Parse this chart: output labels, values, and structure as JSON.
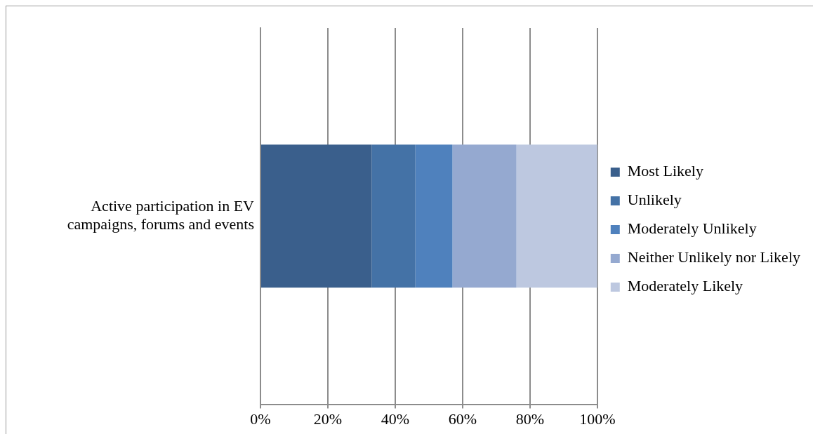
{
  "chart_data": {
    "type": "bar",
    "orientation": "horizontal",
    "stacked": true,
    "categories": [
      "Active participation in EV campaigns, forums and events"
    ],
    "series": [
      {
        "name": "Most Likely",
        "color": "#3a5f8c",
        "values": [
          33
        ]
      },
      {
        "name": "Unlikely",
        "color": "#4472a6",
        "values": [
          13
        ]
      },
      {
        "name": "Moderately Unlikely",
        "color": "#4f81bd",
        "values": [
          11
        ]
      },
      {
        "name": "Neither Unlikely nor Likely",
        "color": "#95a9d0",
        "values": [
          19
        ]
      },
      {
        "name": "Moderately Likely",
        "color": "#bdc8e0",
        "values": [
          24
        ]
      }
    ],
    "xlim": [
      0,
      100
    ],
    "xticks": [
      {
        "value": 0,
        "label": "0%"
      },
      {
        "value": 20,
        "label": "20%"
      },
      {
        "value": 40,
        "label": "40%"
      },
      {
        "value": 60,
        "label": "60%"
      },
      {
        "value": 80,
        "label": "80%"
      },
      {
        "value": 100,
        "label": "100%"
      }
    ],
    "grid": "x",
    "legend": "right"
  }
}
